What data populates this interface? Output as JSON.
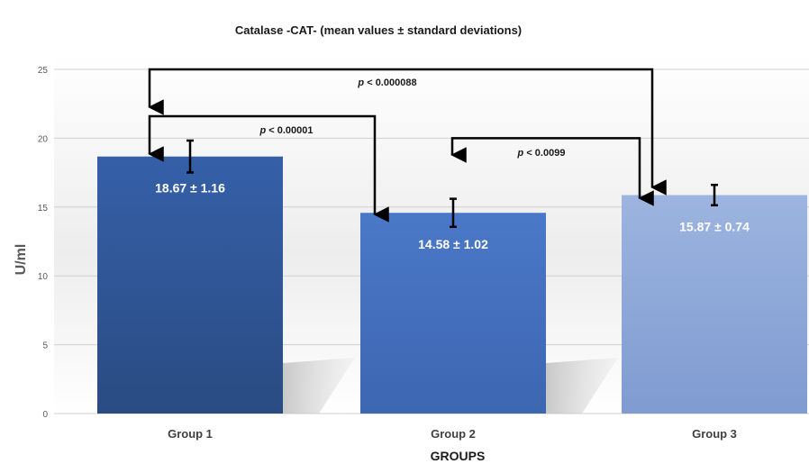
{
  "chart_data": {
    "type": "bar",
    "title": "Catalase -CAT- (mean values ± standard deviations)",
    "xlabel": "GROUPS",
    "ylabel": "U/ml",
    "ylim": [
      0,
      25
    ],
    "yticks": [
      0,
      5,
      10,
      15,
      20,
      25
    ],
    "grid": true,
    "categories": [
      "Group 1",
      "Group 2",
      "Group 3"
    ],
    "values": [
      18.67,
      14.58,
      15.87
    ],
    "errors": [
      1.16,
      1.02,
      0.74
    ],
    "data_labels": [
      "18.67 ± 1.16",
      "14.58 ± 1.02",
      "15.87  ± 0.74"
    ],
    "colors": [
      "#2f5597",
      "#4472c4",
      "#8fa7d9"
    ],
    "annotations": [
      {
        "from": 0,
        "to": 2,
        "y": 25,
        "p_symbol": "p",
        "text": " < 0.000088"
      },
      {
        "from": 0,
        "to": 1,
        "y": 21.6,
        "p_symbol": "p",
        "text": " < 0.00001"
      },
      {
        "from": 1,
        "to": 2,
        "y": 20.0,
        "p_symbol": "p",
        "text": " < 0.0099"
      }
    ]
  }
}
